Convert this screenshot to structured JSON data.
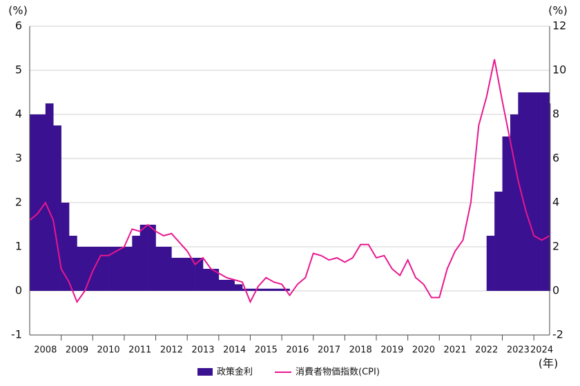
{
  "chart_data": {
    "type": "step-area-line",
    "y_label": "(%)",
    "y2_label": "(%)",
    "x_label": "(年)",
    "x": [
      2008,
      2008.25,
      2008.5,
      2008.75,
      2009,
      2009.25,
      2009.5,
      2009.75,
      2010,
      2010.25,
      2010.5,
      2010.75,
      2011,
      2011.25,
      2011.5,
      2011.75,
      2012,
      2012.25,
      2012.5,
      2012.75,
      2013,
      2013.25,
      2013.5,
      2013.75,
      2014,
      2014.25,
      2014.5,
      2014.75,
      2015,
      2015.25,
      2015.5,
      2015.75,
      2016,
      2016.25,
      2016.5,
      2016.75,
      2017,
      2017.25,
      2017.5,
      2017.75,
      2018,
      2018.25,
      2018.5,
      2018.75,
      2019,
      2019.25,
      2019.5,
      2019.75,
      2020,
      2020.25,
      2020.5,
      2020.75,
      2021,
      2021.25,
      2021.5,
      2021.75,
      2022,
      2022.25,
      2022.5,
      2022.75,
      2023,
      2023.25,
      2023.5,
      2023.75,
      2024,
      2024.25,
      2024.5
    ],
    "series": [
      {
        "name": "政策金利",
        "color": "#3a1191",
        "values": [
          4.0,
          4.0,
          4.25,
          3.75,
          2.0,
          1.25,
          1.0,
          1.0,
          1.0,
          1.0,
          1.0,
          1.0,
          1.0,
          1.25,
          1.5,
          1.5,
          1.0,
          1.0,
          0.75,
          0.75,
          0.75,
          0.75,
          0.5,
          0.5,
          0.25,
          0.25,
          0.15,
          0.05,
          0.05,
          0.05,
          0.05,
          0.05,
          0.05,
          0,
          0,
          0,
          0,
          0,
          0,
          0,
          0,
          0,
          0,
          0,
          0,
          0,
          0,
          0,
          0,
          0,
          0,
          0,
          0,
          0,
          0,
          0,
          0,
          0,
          1.25,
          2.25,
          3.5,
          4.0,
          4.5,
          4.5,
          4.5,
          4.5,
          4.25
        ]
      },
      {
        "name": "消費者物価指数(CPI)",
        "color": "#e8178f",
        "axis": "y2",
        "values": [
          3.2,
          3.5,
          4.0,
          3.2,
          1.0,
          0.4,
          -0.5,
          0,
          0.9,
          1.6,
          1.6,
          1.8,
          2.0,
          2.8,
          2.7,
          3.0,
          2.7,
          2.5,
          2.6,
          2.2,
          1.8,
          1.2,
          1.5,
          1.0,
          0.8,
          0.6,
          0.5,
          0.4,
          -0.5,
          0.2,
          0.6,
          0.4,
          0.3,
          -0.2,
          0.3,
          0.6,
          1.7,
          1.6,
          1.4,
          1.5,
          1.3,
          1.5,
          2.1,
          2.1,
          1.5,
          1.6,
          1.0,
          0.7,
          1.4,
          0.6,
          0.3,
          -0.3,
          -0.3,
          1.0,
          1.8,
          2.3,
          4.0,
          7.5,
          8.8,
          10.5,
          8.6,
          6.8,
          5.0,
          3.6,
          2.5,
          2.3,
          2.5
        ]
      }
    ],
    "xlim": [
      2008,
      2024.5
    ],
    "xticks": [
      {
        "value": 2008.5,
        "label": "2008"
      },
      {
        "value": 2009.5,
        "label": "2009"
      },
      {
        "value": 2010.5,
        "label": "2010"
      },
      {
        "value": 2011.5,
        "label": "2011"
      },
      {
        "value": 2012.5,
        "label": "2012"
      },
      {
        "value": 2013.5,
        "label": "2013"
      },
      {
        "value": 2014.5,
        "label": "2014"
      },
      {
        "value": 2015.5,
        "label": "2015"
      },
      {
        "value": 2016.5,
        "label": "2016"
      },
      {
        "value": 2017.5,
        "label": "2017"
      },
      {
        "value": 2018.5,
        "label": "2018"
      },
      {
        "value": 2019.5,
        "label": "2019"
      },
      {
        "value": 2020.5,
        "label": "2020"
      },
      {
        "value": 2021.5,
        "label": "2021"
      },
      {
        "value": 2022.5,
        "label": "2022"
      },
      {
        "value": 2023.5,
        "label": "2023"
      },
      {
        "value": 2024.25,
        "label": "2024"
      }
    ],
    "ylim": [
      -1,
      6
    ],
    "yticks": [
      -1,
      0,
      1,
      2,
      3,
      4,
      5,
      6
    ],
    "y2lim": [
      -2,
      12
    ],
    "y2ticks": [
      -2,
      0,
      2,
      4,
      6,
      8,
      10,
      12
    ],
    "grid": true
  }
}
